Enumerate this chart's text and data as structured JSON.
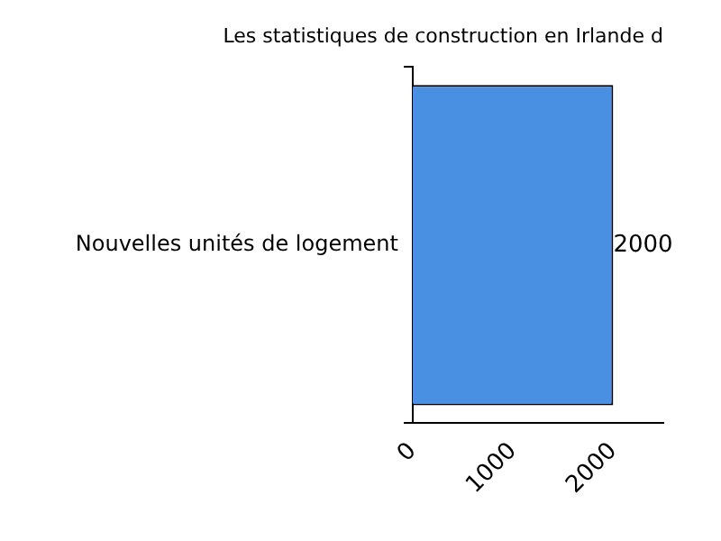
{
  "chart_data": {
    "type": "bar",
    "orientation": "horizontal",
    "title": "Les statistiques de construction en Irlande d",
    "categories": [
      "Nouvelles unités de logement"
    ],
    "values": [
      2000
    ],
    "color": "#4a90e2",
    "xlim": [
      0,
      2500
    ],
    "xticks": [
      0,
      1000,
      2000
    ],
    "data_labels": true,
    "grid": false,
    "legend": false
  }
}
